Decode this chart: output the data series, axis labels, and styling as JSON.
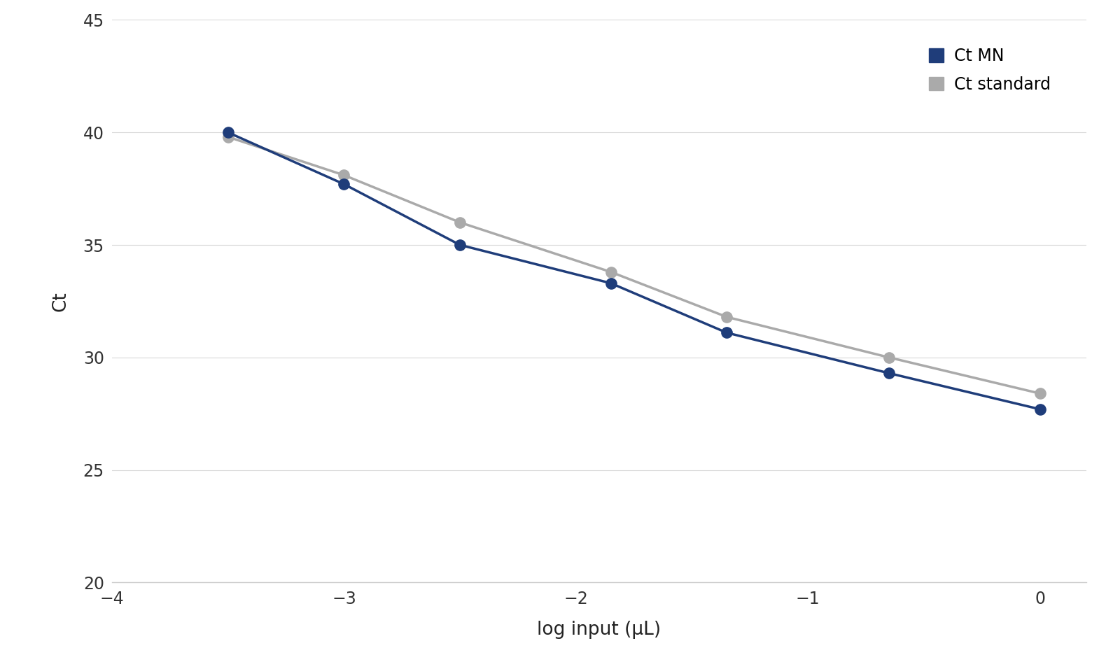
{
  "mn_x": [
    -3.5,
    -3.0,
    -2.5,
    -1.85,
    -1.35,
    -0.65,
    0.0
  ],
  "mn_y": [
    40.0,
    37.7,
    35.0,
    33.3,
    31.1,
    29.3,
    27.7
  ],
  "std_x": [
    -3.5,
    -3.0,
    -2.5,
    -1.85,
    -1.35,
    -0.65,
    0.0
  ],
  "std_y": [
    39.8,
    38.1,
    36.0,
    33.8,
    31.8,
    30.0,
    28.4
  ],
  "mn_color": "#1F3D7A",
  "std_color": "#AAAAAA",
  "mn_label": "Ct MN",
  "std_label": "Ct standard",
  "xlabel": "log input (μL)",
  "ylabel": "Ct",
  "xlim": [
    -4.0,
    0.2
  ],
  "ylim": [
    20,
    45
  ],
  "xticks": [
    -4,
    -3,
    -2,
    -1,
    0
  ],
  "yticks": [
    20,
    25,
    30,
    35,
    40,
    45
  ],
  "bg_color": "#ffffff",
  "marker_size": 11,
  "line_width": 2.5,
  "legend_fontsize": 17,
  "axis_fontsize": 19,
  "tick_fontsize": 17,
  "grid_color": "#d8d8d8",
  "spine_color": "#cccccc"
}
